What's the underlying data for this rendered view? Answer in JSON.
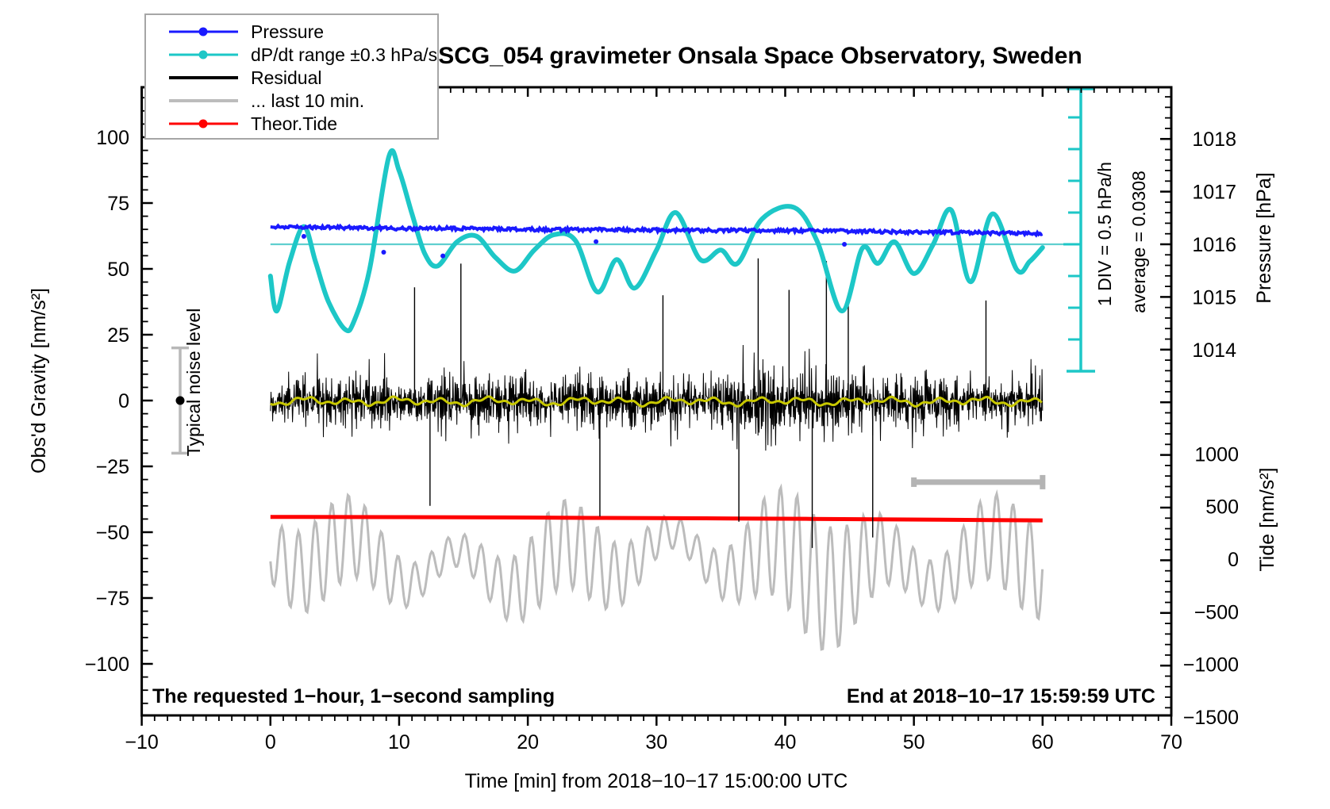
{
  "title": "SCG_054 gravimeter Onsala Space Observatory, Sweden",
  "colors": {
    "pressure": "#1a1aff",
    "dpdt": "#1dc7c7",
    "dpdt_centerline": "#5fcfcf",
    "residual": "#000000",
    "residual_smoothed": "#c8c800",
    "last10": "#bcbcbc",
    "theor_tide": "#ff0000",
    "noise_bar": "#b8b8b8",
    "bracket": "#b4b4b4",
    "frame": "#000000",
    "legend_border": "#a6a6a6"
  },
  "legend": {
    "items": [
      {
        "label": "Pressure",
        "color": "#1a1aff",
        "marker": true
      },
      {
        "label": "dP/dt range ±0.3 hPa/s",
        "color": "#1dc7c7",
        "marker": true
      },
      {
        "label": "Residual",
        "color": "#000000",
        "marker": false
      },
      {
        "label": "... last 10 min.",
        "color": "#bcbcbc",
        "marker": false
      },
      {
        "label": "Theor.Tide",
        "color": "#ff0000",
        "marker": true
      }
    ]
  },
  "annotations": {
    "sampling": "The requested 1−hour, 1−second sampling",
    "end": "End at 2018−10−17 15:59:59 UTC"
  },
  "labels": {
    "noise": "Typical noise level",
    "div": "1 DIV = 0.5 hPa/h",
    "average": "average = 0.0308"
  },
  "chart_data": {
    "type": "line",
    "title": "SCG_054 gravimeter Onsala Space Observatory, Sweden",
    "x_axis": {
      "label": "Time [min] from 2018−10−17 15:00:00 UTC",
      "min": -10,
      "max": 70,
      "major_tick": 10,
      "minor_tick": 1,
      "tick_labels": [
        "−10",
        "0",
        "10",
        "20",
        "30",
        "40",
        "50",
        "60",
        "70"
      ],
      "tick_values": [
        -10,
        0,
        10,
        20,
        30,
        40,
        50,
        60,
        70
      ]
    },
    "left_axis": {
      "label": "Obs'd Gravity [nm/s²]",
      "min": -119,
      "max": 118,
      "major_tick": 25,
      "minor_tick": 5,
      "tick_labels": [
        "100",
        "75",
        "50",
        "25",
        "0",
        "−25",
        "−50",
        "−75",
        "−100"
      ],
      "tick_values": [
        100,
        75,
        50,
        25,
        0,
        -25,
        -50,
        -75,
        -100
      ]
    },
    "right_axis_pressure": {
      "label": "Pressure [hPa]",
      "tick_labels": [
        "1018",
        "1017",
        "1016",
        "1015",
        "1014"
      ],
      "tick_values": [
        1018,
        1017,
        1016,
        1015,
        1014
      ],
      "minor_tick_hpa": 0.2
    },
    "right_axis_tide": {
      "label": "Tide [nm/s²]",
      "tick_labels": [
        "1000",
        "500",
        "0",
        "−500",
        "−1000",
        "−1500"
      ],
      "tick_values": [
        1000,
        500,
        0,
        -500,
        -1000,
        -1500
      ],
      "minor_tick": 100
    },
    "series": {
      "pressure_hpa": {
        "name": "Pressure",
        "x_min": [
          0,
          5,
          10,
          15,
          20,
          25,
          30,
          35,
          40,
          45,
          50,
          55,
          60
        ],
        "values": [
          1016.33,
          1016.32,
          1016.3,
          1016.3,
          1016.28,
          1016.28,
          1016.27,
          1016.26,
          1016.26,
          1016.25,
          1016.23,
          1016.22,
          1016.2
        ],
        "stray_points": [
          [
            2.6,
            1016.15
          ],
          [
            8.8,
            1015.85
          ],
          [
            13.4,
            1015.78
          ],
          [
            25.3,
            1016.05
          ],
          [
            44.6,
            1016.0
          ]
        ]
      },
      "dpdt_hpa_per_h": {
        "name": "dP/dt range ±0.3 hPa/s",
        "average": 0.0308,
        "hpa_per_h_per_div": 0.5,
        "x_min": [
          0,
          0.5,
          1.5,
          2.6,
          3.5,
          4.5,
          5.8,
          6.5,
          7.7,
          9.2,
          10,
          11,
          12,
          13,
          14.5,
          16,
          17.5,
          19,
          20.5,
          22,
          23.7,
          25.4,
          26.9,
          28.3,
          30,
          31.5,
          33.4,
          35,
          36.3,
          38.2,
          40.7,
          42.5,
          44.4,
          46,
          47.2,
          48.5,
          50,
          51.5,
          52.9,
          54.4,
          56.1,
          58,
          59,
          60
        ],
        "values": [
          -0.47,
          -1.02,
          -0.24,
          0.31,
          -0.24,
          -0.87,
          -1.31,
          -1.18,
          -0.37,
          1.41,
          1.19,
          0.51,
          -0.12,
          -0.31,
          0.07,
          0.16,
          -0.18,
          -0.39,
          -0.06,
          0.18,
          0.09,
          -0.72,
          -0.21,
          -0.66,
          -0.06,
          0.53,
          -0.21,
          -0.06,
          -0.27,
          0.43,
          0.61,
          0.07,
          -1.02,
          -0.03,
          -0.27,
          0.07,
          -0.43,
          0.03,
          0.57,
          -0.56,
          0.51,
          -0.37,
          -0.24,
          -0.02
        ]
      },
      "residual_nms2": {
        "name": "Residual",
        "sampling": "1 second, 0–60 min",
        "mean": -0.5,
        "typical_range_nms2": [
          -28,
          28
        ],
        "extreme_range_nms2": [
          -56,
          56
        ],
        "extreme_spikes": [
          [
            11.2,
            43
          ],
          [
            12.4,
            -40
          ],
          [
            14.8,
            52
          ],
          [
            25.6,
            -44
          ],
          [
            30.5,
            40
          ],
          [
            36.4,
            -46
          ],
          [
            37.9,
            54
          ],
          [
            40.3,
            42
          ],
          [
            42.1,
            -56
          ],
          [
            43.2,
            53
          ],
          [
            44.9,
            40
          ],
          [
            46.8,
            -52
          ],
          [
            55.6,
            38
          ]
        ]
      },
      "residual_smoothed_nms2": {
        "name": "Residual smoothed",
        "mean": -0.3,
        "wiggle_nms2": 2
      },
      "residual_last10min": {
        "name": "... last 10 min.",
        "t_start": 50,
        "t_end": 60,
        "plotted_center_tide": -20,
        "typical_amplitude_tide": 650,
        "extreme_amplitude_tide": 1300
      },
      "theor_tide_nms2": {
        "name": "Theor.Tide",
        "x_min": [
          0,
          10,
          20,
          25,
          30,
          36,
          42,
          47,
          52,
          56,
          60
        ],
        "values": [
          402,
          400,
          396,
          392,
          390,
          387,
          383,
          379,
          375,
          372,
          369
        ]
      }
    },
    "noise_level_bar": {
      "label": "Typical noise level",
      "center_nms2": 0,
      "half_range_nms2": 20,
      "at_min": -7
    },
    "scale_bar": {
      "label": "1 DIV = 0.5 hPa/h",
      "average": 0.0308,
      "average_label": "average = 0.0308",
      "divisions": 8
    },
    "last10_bracket": {
      "t_start": 50,
      "t_end": 60,
      "at_nms2": -31
    },
    "grid": false,
    "legend_position": "top-left"
  }
}
